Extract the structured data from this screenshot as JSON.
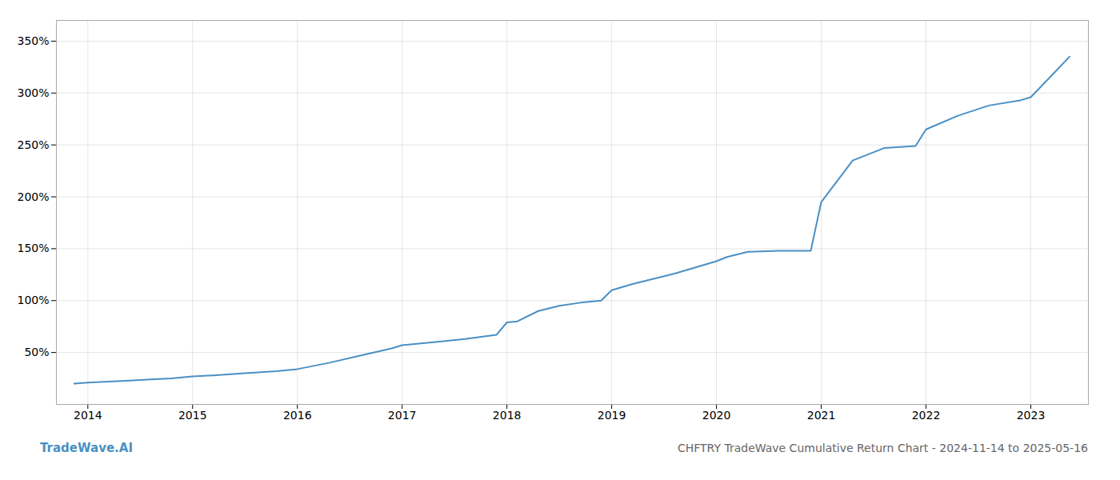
{
  "chart_data": {
    "type": "line",
    "title": "CHFTRY TradeWave Cumulative Return Chart - 2024-11-14 to 2025-05-16",
    "annotations": [
      "TradeWave.AI"
    ],
    "color": "#4a90c4",
    "grid": true,
    "x": [
      2013.87,
      2014.0,
      2014.2,
      2014.4,
      2014.6,
      2014.8,
      2015.0,
      2015.2,
      2015.5,
      2015.8,
      2016.0,
      2016.3,
      2016.6,
      2016.9,
      2017.0,
      2017.3,
      2017.6,
      2017.9,
      2018.0,
      2018.1,
      2018.3,
      2018.5,
      2018.7,
      2018.9,
      2019.0,
      2019.2,
      2019.4,
      2019.6,
      2019.8,
      2020.0,
      2020.1,
      2020.3,
      2020.6,
      2020.9,
      2021.0,
      2021.3,
      2021.6,
      2021.9,
      2022.0,
      2022.3,
      2022.6,
      2022.9,
      2023.0,
      2023.2,
      2023.37
    ],
    "values": [
      20,
      21,
      22,
      23,
      24,
      25,
      27,
      28,
      30,
      32,
      34,
      40,
      47,
      54,
      57,
      60,
      63,
      67,
      79,
      80,
      90,
      95,
      98,
      100,
      110,
      116,
      121,
      126,
      132,
      138,
      142,
      147,
      148,
      148,
      195,
      235,
      247,
      249,
      265,
      278,
      288,
      293,
      296,
      317,
      335
    ],
    "xlim": [
      2013.7,
      2023.55
    ],
    "xticks": [
      2014,
      2015,
      2016,
      2017,
      2018,
      2019,
      2020,
      2021,
      2022,
      2023
    ],
    "ylim": [
      0,
      370
    ],
    "yticks": [
      {
        "value": 50,
        "label": "50%"
      },
      {
        "value": 100,
        "label": "100%"
      },
      {
        "value": 150,
        "label": "150%"
      },
      {
        "value": 200,
        "label": "200%"
      },
      {
        "value": 250,
        "label": "250%"
      },
      {
        "value": 300,
        "label": "300%"
      },
      {
        "value": 350,
        "label": "350%"
      }
    ]
  }
}
